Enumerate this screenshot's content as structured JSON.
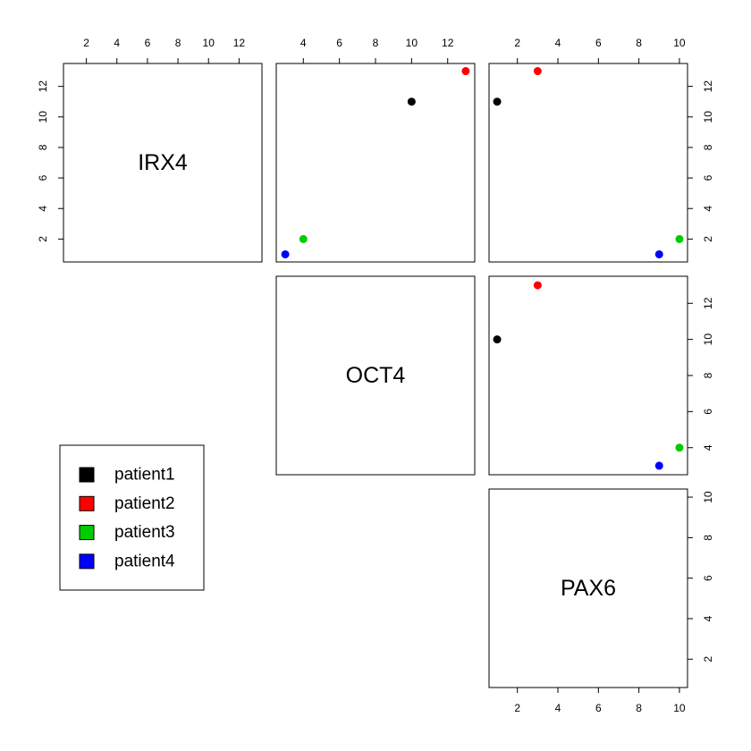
{
  "chart_data": {
    "type": "scatter",
    "variables": [
      "IRX4",
      "OCT4",
      "PAX6"
    ],
    "observations": [
      {
        "name": "patient1",
        "color": "#000000",
        "values": {
          "IRX4": 11,
          "OCT4": 10,
          "PAX6": 1
        }
      },
      {
        "name": "patient2",
        "color": "#ff0000",
        "values": {
          "IRX4": 13,
          "OCT4": 13,
          "PAX6": 3
        }
      },
      {
        "name": "patient3",
        "color": "#00cd00",
        "values": {
          "IRX4": 2,
          "OCT4": 4,
          "PAX6": 10
        }
      },
      {
        "name": "patient4",
        "color": "#0000ff",
        "values": {
          "IRX4": 1,
          "OCT4": 3,
          "PAX6": 9
        }
      }
    ],
    "axes": {
      "IRX4": {
        "range": [
          0.5,
          13.5
        ],
        "ticks": [
          2,
          4,
          6,
          8,
          10,
          12
        ]
      },
      "OCT4": {
        "range": [
          2.5,
          13.5
        ],
        "ticks": [
          4,
          6,
          8,
          10,
          12
        ]
      },
      "PAX6": {
        "range": [
          0.6,
          10.4
        ],
        "ticks": [
          2,
          4,
          6,
          8,
          10
        ]
      }
    },
    "panels": "upper-triangle",
    "grid": false,
    "legend": {
      "placement": "bottom-left",
      "entries": [
        "patient1",
        "patient2",
        "patient3",
        "patient4"
      ]
    }
  }
}
